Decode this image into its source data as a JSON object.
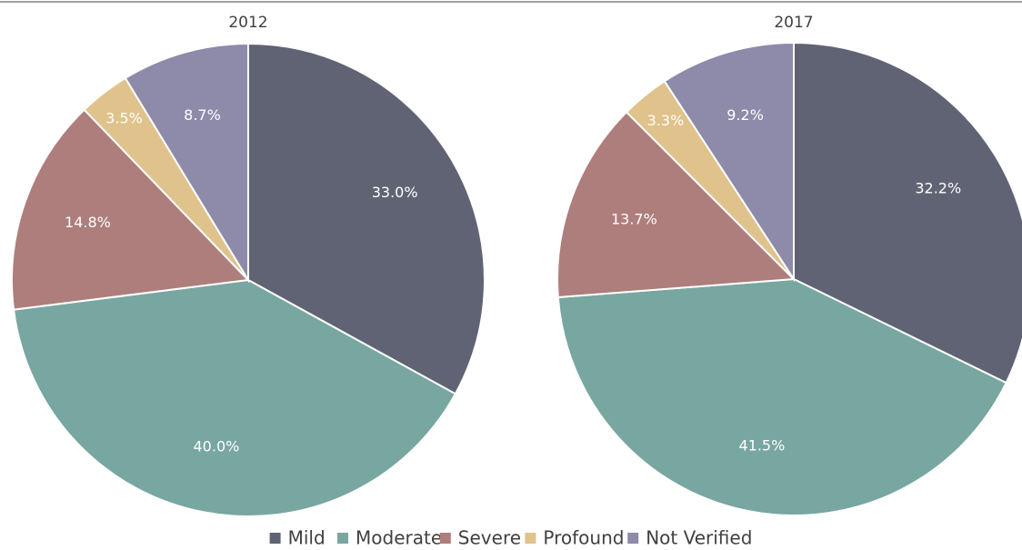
{
  "chart_data": [
    {
      "type": "pie",
      "title": "2012",
      "categories": [
        "Mild",
        "Moderate",
        "Severe",
        "Profound",
        "Not Verified"
      ],
      "values": [
        33.0,
        40.0,
        14.8,
        3.5,
        8.7
      ],
      "value_labels": [
        "33.0%",
        "40.0%",
        "14.8%",
        "3.5%",
        "8.7%"
      ],
      "colors": [
        "#606373",
        "#78a6a1",
        "#ad7e7c",
        "#e0c28c",
        "#8e8aa9"
      ]
    },
    {
      "type": "pie",
      "title": "2017",
      "categories": [
        "Mild",
        "Moderate",
        "Severe",
        "Profound",
        "Not Verified"
      ],
      "values": [
        32.2,
        41.5,
        13.7,
        3.3,
        9.2
      ],
      "value_labels": [
        "32.2%",
        "41.5%",
        "13.7%",
        "3.3%",
        "9.2%"
      ],
      "colors": [
        "#606373",
        "#78a6a1",
        "#ad7e7c",
        "#e0c28c",
        "#8e8aa9"
      ]
    }
  ]
}
